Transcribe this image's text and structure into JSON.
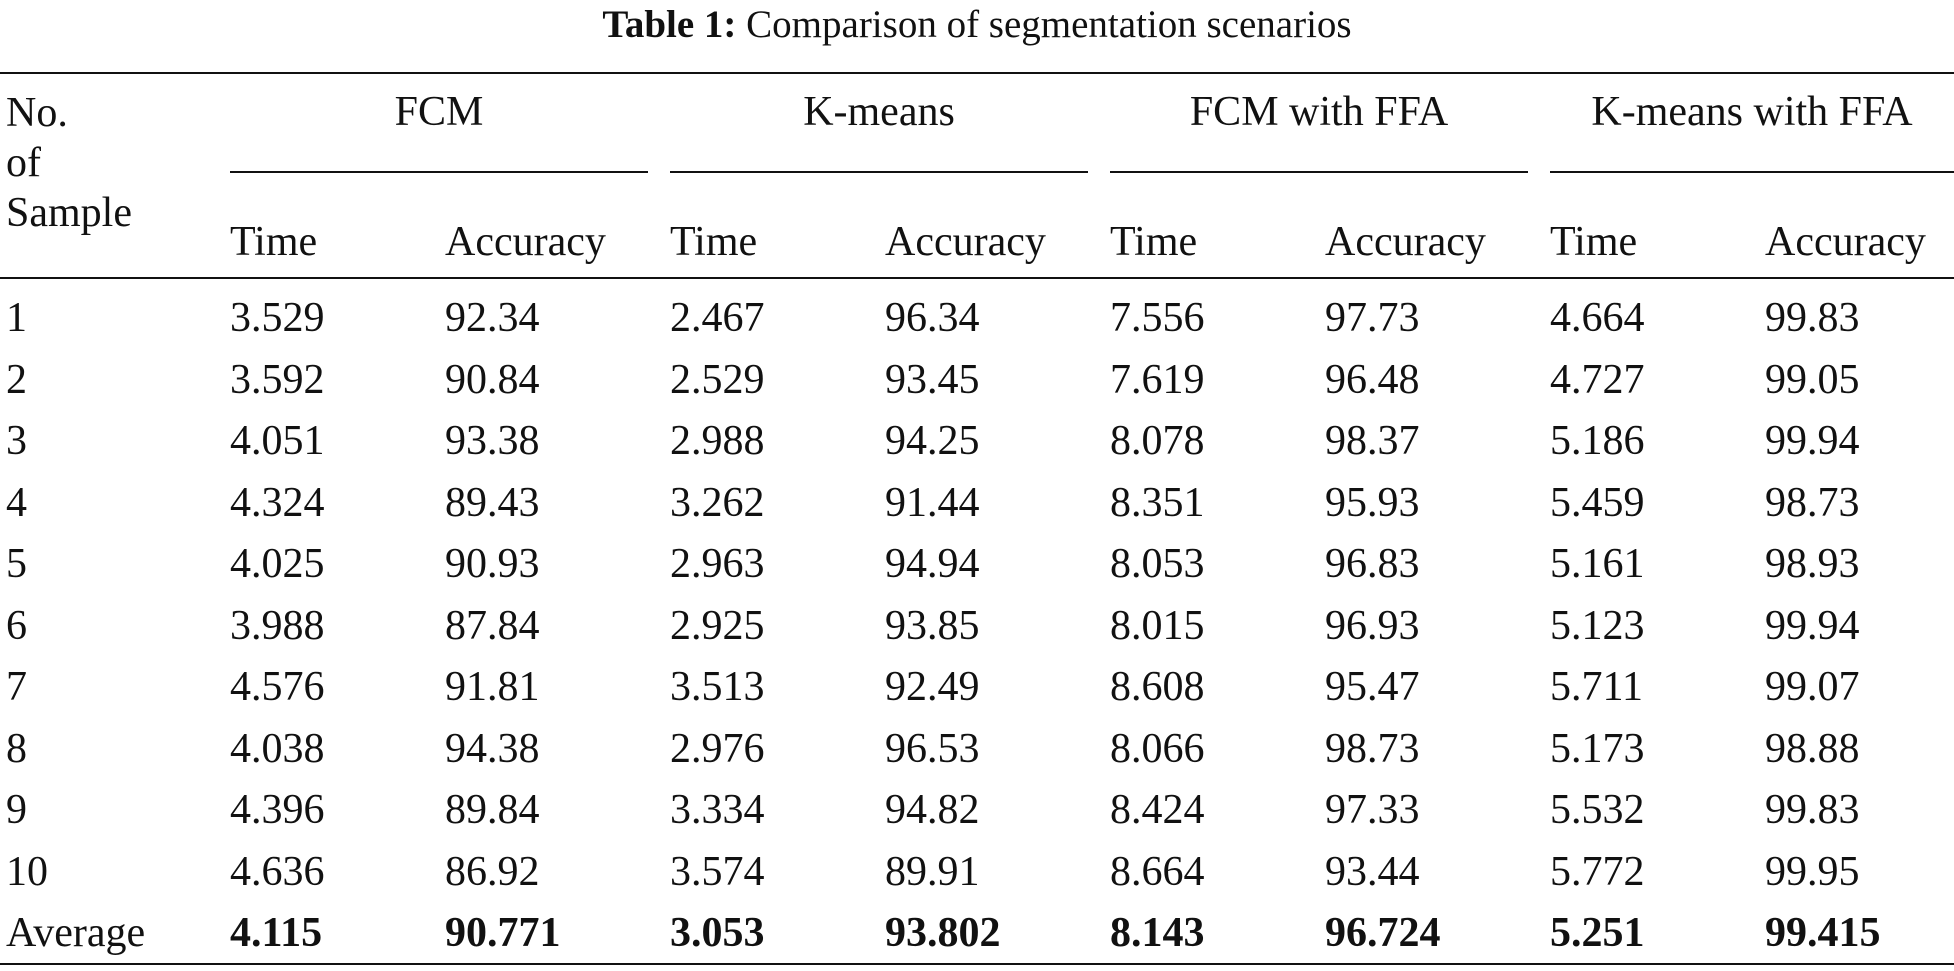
{
  "table": {
    "caption_label": "Table 1:",
    "caption_text": "Comparison of segmentation scenarios",
    "stub_header": [
      "No.",
      "of",
      "Sample"
    ],
    "groups": [
      {
        "name": "FCM",
        "sub": [
          "Time",
          "Accuracy"
        ]
      },
      {
        "name": "K-means",
        "sub": [
          "Time",
          "Accuracy"
        ]
      },
      {
        "name": "FCM with FFA",
        "sub": [
          "Time",
          "Accuracy"
        ]
      },
      {
        "name": "K-means with FFA",
        "sub": [
          "Time",
          "Accuracy"
        ]
      }
    ],
    "rows": [
      [
        "1",
        "3.529",
        "92.34",
        "2.467",
        "96.34",
        "7.556",
        "97.73",
        "4.664",
        "99.83"
      ],
      [
        "2",
        "3.592",
        "90.84",
        "2.529",
        "93.45",
        "7.619",
        "96.48",
        "4.727",
        "99.05"
      ],
      [
        "3",
        "4.051",
        "93.38",
        "2.988",
        "94.25",
        "8.078",
        "98.37",
        "5.186",
        "99.94"
      ],
      [
        "4",
        "4.324",
        "89.43",
        "3.262",
        "91.44",
        "8.351",
        "95.93",
        "5.459",
        "98.73"
      ],
      [
        "5",
        "4.025",
        "90.93",
        "2.963",
        "94.94",
        "8.053",
        "96.83",
        "5.161",
        "98.93"
      ],
      [
        "6",
        "3.988",
        "87.84",
        "2.925",
        "93.85",
        "8.015",
        "96.93",
        "5.123",
        "99.94"
      ],
      [
        "7",
        "4.576",
        "91.81",
        "3.513",
        "92.49",
        "8.608",
        "95.47",
        "5.711",
        "99.07"
      ],
      [
        "8",
        "4.038",
        "94.38",
        "2.976",
        "96.53",
        "8.066",
        "98.73",
        "5.173",
        "98.88"
      ],
      [
        "9",
        "4.396",
        "89.84",
        "3.334",
        "94.82",
        "8.424",
        "97.33",
        "5.532",
        "99.83"
      ],
      [
        "10",
        "4.636",
        "86.92",
        "3.574",
        "89.91",
        "8.664",
        "93.44",
        "5.772",
        "99.95"
      ]
    ],
    "average_row": [
      "Average",
      "4.115",
      "90.771",
      "3.053",
      "93.802",
      "8.143",
      "96.724",
      "5.251",
      "99.415"
    ]
  }
}
